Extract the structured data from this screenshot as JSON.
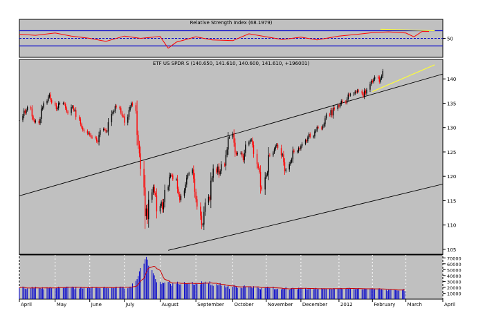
{
  "colors": {
    "panel_bg": "#c0c0c0",
    "page_bg": "#ffffff",
    "up_candle": "#000000",
    "down_candle": "#ff0000",
    "rsi_line": "#ff0000",
    "rsi_band": "#0000cc",
    "trendline": "#000000",
    "highlight_line": "#ffff33",
    "volume_bar": "#0000cc",
    "volume_avg": "#cc0000",
    "grid": "#ffffff"
  },
  "chart_data": [
    {
      "type": "line",
      "panel": "rsi",
      "title": "Relative Strength Index (68.1979)",
      "ylim": [
        0,
        100
      ],
      "ticks": [
        50
      ],
      "levels": [
        30,
        50,
        70
      ],
      "x_dates": [
        "2011-04-01",
        "2011-04-15",
        "2011-05-02",
        "2011-05-16",
        "2011-06-01",
        "2011-06-15",
        "2011-07-01",
        "2011-07-15",
        "2011-08-01",
        "2011-08-08",
        "2011-08-15",
        "2011-09-01",
        "2011-09-15",
        "2011-10-03",
        "2011-10-17",
        "2011-11-01",
        "2011-11-15",
        "2011-12-01",
        "2011-12-15",
        "2012-01-03",
        "2012-01-17",
        "2012-02-01",
        "2012-02-15",
        "2012-03-01",
        "2012-03-08",
        "2012-03-15",
        "2012-03-21"
      ],
      "values": [
        61,
        58,
        64,
        56,
        50,
        42,
        56,
        50,
        55,
        24,
        40,
        54,
        46,
        44,
        62,
        54,
        47,
        53,
        46,
        56,
        60,
        65,
        67,
        64,
        54,
        68,
        68
      ],
      "highlight_segment": {
        "dates": [
          "2012-02-08",
          "2012-03-26"
        ],
        "values": [
          74,
          70
        ]
      }
    },
    {
      "type": "candlestick",
      "panel": "price",
      "title": "ETF US SPDR S (140.650, 141.610, 140.600, 141.610, +196001)",
      "ylim": [
        104,
        144
      ],
      "yticks": [
        105,
        110,
        115,
        120,
        125,
        130,
        135,
        140
      ],
      "trend_lines": [
        {
          "from": [
            "2011-04-01",
            116.0
          ],
          "to": [
            "2012-04-02",
            141.0
          ]
        },
        {
          "from": [
            "2011-08-08",
            104.8
          ],
          "to": [
            "2012-04-02",
            118.4
          ]
        }
      ],
      "highlight_line": {
        "from": [
          "2012-02-01",
          137.4
        ],
        "to": [
          "2012-03-26",
          142.9
        ]
      },
      "closes": [
        131.5,
        132.4,
        133.5,
        133.0,
        133.6,
        134.2,
        133.9,
        132.3,
        131.6,
        131.2,
        131.4,
        130.9,
        131.8,
        133.8,
        134.1,
        135.0,
        135.5,
        136.3,
        136.8,
        135.7,
        135.1,
        134.7,
        133.8,
        134.0,
        135.0,
        135.0,
        135.0,
        134.8,
        134.0,
        133.3,
        133.0,
        134.2,
        134.3,
        133.6,
        133.6,
        132.2,
        131.7,
        130.7,
        130.0,
        129.5,
        129.3,
        128.8,
        128.9,
        128.5,
        128.1,
        128.0,
        127.9,
        127.2,
        127.0,
        128.5,
        129.5,
        129.7,
        129.6,
        129.2,
        129.2,
        131.1,
        132.8,
        133.2,
        133.4,
        134.4,
        134.2,
        134.0,
        133.1,
        132.4,
        132.3,
        131.0,
        132.2,
        133.6,
        134.3,
        135.0,
        134.6,
        133.4,
        128.5,
        126.5,
        124.7,
        121.5,
        117.7,
        111.8,
        113.4,
        111.2,
        115.2,
        116.7,
        117.8,
        116.6,
        116.1,
        112.8,
        113.9,
        114.7,
        113.2,
        114.7,
        117.2,
        117.9,
        119.9,
        120.3,
        120.2,
        119.4,
        119.4,
        117.4,
        116.3,
        115.1,
        116.0,
        117.1,
        118.3,
        119.7,
        120.4,
        120.6,
        121.4,
        119.5,
        116.8,
        115.3,
        113.8,
        111.9,
        110.0,
        110.1,
        112.7,
        114.6,
        115.8,
        115.2,
        119.1,
        119.7,
        121.6,
        120.8,
        122.0,
        120.4,
        121.1,
        122.5,
        122.2,
        124.4,
        125.5,
        128.0,
        128.0,
        128.8,
        126.9,
        124.9,
        124.5,
        124.8,
        124.8,
        124.2,
        123.3,
        124.8,
        126.5,
        127.0,
        127.4,
        127.5,
        126.4,
        124.6,
        122.5,
        121.7,
        120.9,
        117.8,
        117.3,
        119.8,
        120.3,
        120.8,
        124.4,
        124.3,
        124.9,
        125.6,
        126.2,
        126.5,
        125.8,
        124.3,
        124.5,
        122.9,
        121.1,
        121.4,
        122.5,
        123.0,
        123.5,
        125.3,
        125.0,
        125.1,
        125.8,
        125.6,
        126.2,
        126.7,
        127.4,
        127.2,
        128.0,
        128.7,
        128.1,
        128.2,
        129.2,
        129.4,
        130.1,
        130.0,
        129.8,
        130.3,
        130.7,
        131.9,
        132.7,
        132.6,
        133.6,
        132.5,
        134.0,
        133.8,
        134.6,
        134.3,
        134.8,
        135.5,
        135.3,
        135.1,
        135.9,
        136.8,
        136.7,
        136.8,
        137.0,
        137.4,
        137.3,
        137.6,
        137.5,
        137.0,
        136.4,
        137.6,
        137.0,
        137.8,
        138.9,
        139.6,
        139.4,
        139.9,
        140.4,
        140.3,
        139.4,
        140.1,
        140.6,
        141.6
      ],
      "start_date": "2011-04-01"
    },
    {
      "type": "bar",
      "panel": "volume",
      "ylim": [
        0,
        75000
      ],
      "yticks": [
        10000,
        20000,
        30000,
        40000,
        50000,
        60000,
        70000
      ],
      "values": [
        19346,
        21240,
        20051,
        17859,
        16985,
        18314,
        18434,
        21061,
        19133,
        18426,
        21028,
        18582,
        19082,
        17712,
        20223,
        16758,
        20134,
        19309,
        19924,
        20296,
        19434,
        17998,
        19416,
        19301,
        21140,
        19316,
        19231,
        20359,
        20137,
        21228,
        21227,
        20244,
        21185,
        19982,
        16835,
        21075,
        17881,
        19809,
        20373,
        17999,
        20339,
        18813,
        21113,
        20003,
        18542,
        21040,
        20008,
        20289,
        19224,
        18743,
        18592,
        20271,
        21056,
        18823,
        19924,
        18617,
        19911,
        18864,
        19922,
        20298,
        21068,
        20829,
        21228,
        21050,
        20244,
        17815,
        18553,
        19939,
        21238,
        19702,
        26600,
        30975,
        33893,
        39216,
        47226,
        52812,
        60200,
        67648,
        71632,
        67120,
        56718,
        49218,
        44016,
        40416,
        33990,
        28696,
        29272,
        25616,
        28014,
        27154,
        28306,
        29180,
        31616,
        25932,
        22662,
        27032,
        26272,
        29662,
        25778,
        24864,
        25270,
        29110,
        27062,
        26196,
        26016,
        27310,
        29200,
        24924,
        24630,
        27552,
        25730,
        25218,
        30186,
        27950,
        28154,
        29658,
        26532,
        30288,
        23816,
        24920,
        22574,
        25522,
        23540,
        24396,
        27358,
        22864,
        23212,
        19880,
        21364,
        22662,
        17656,
        21040,
        24126,
        21418,
        21560,
        18994,
        19470,
        18600,
        22008,
        23292,
        20706,
        21128,
        22030,
        19724,
        18620,
        22008,
        20802,
        19474,
        17740,
        16672,
        19022,
        20074,
        21244,
        21070,
        20446,
        18818,
        21168,
        16802,
        16960,
        16900,
        17662,
        16578,
        17920,
        17098,
        18498,
        20466,
        15918,
        17998,
        18802,
        19338,
        18186,
        16552,
        19248,
        18410,
        19208,
        19094,
        18530,
        16696,
        16638,
        19028,
        18004,
        17000,
        17098,
        19058,
        16842,
        17508,
        18616,
        17662,
        17624,
        17414,
        18060,
        17436,
        17612,
        16782,
        18632,
        18238,
        18144,
        17904,
        19022,
        18520,
        17176,
        18076,
        19028,
        17632,
        19146,
        17526,
        17262,
        16822,
        18410,
        18114,
        18622,
        16624,
        16526,
        18018,
        18188,
        17174,
        17628,
        17922,
        18326,
        16522,
        17728,
        16800,
        18316,
        16400,
        16602,
        15716,
        15914,
        13958,
        16146,
        15700,
        17050,
        15968,
        16070,
        14950,
        14664,
        14390,
        16292,
        17128,
        13798
      ]
    }
  ],
  "x_axis": {
    "month_labels": [
      "April",
      "May",
      "June",
      "July",
      "August",
      "September",
      "October",
      "November",
      "December",
      "2012",
      "February",
      "March",
      "April"
    ],
    "volume_ticks": [
      "70000",
      "60000",
      "50000",
      "40000",
      "30000",
      "20000",
      "10000"
    ]
  }
}
